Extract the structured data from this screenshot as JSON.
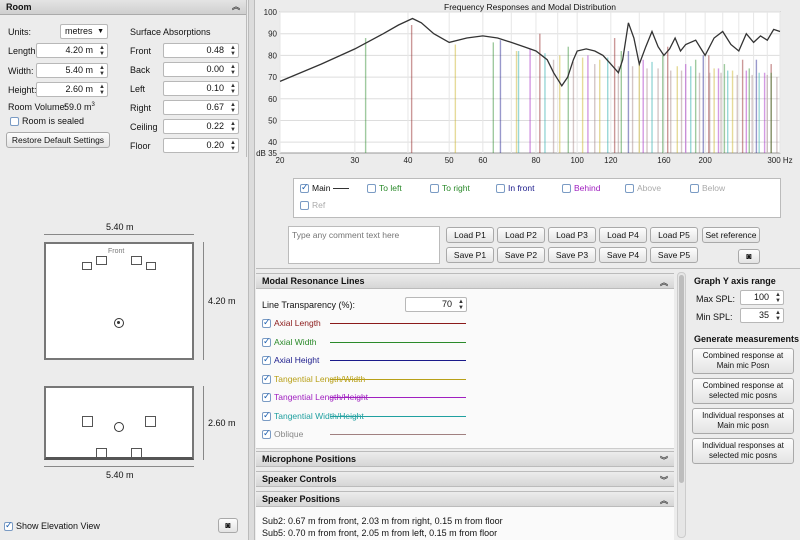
{
  "room": {
    "title": "Room",
    "units_label": "Units:",
    "units_value": "metres",
    "length_label": "Length:",
    "length_value": "4.20 m",
    "width_label": "Width:",
    "width_value": "5.40 m",
    "height_label": "Height:",
    "height_value": "2.60 m",
    "volume_label": "Room Volume:",
    "volume_value": "59.0 m",
    "volume_sup": "3",
    "sealed_label": "Room is sealed",
    "restore_label": "Restore Default Settings",
    "absorption_title": "Surface Absorptions",
    "surfaces": [
      {
        "label": "Front",
        "value": "0.48"
      },
      {
        "label": "Back",
        "value": "0.00"
      },
      {
        "label": "Left",
        "value": "0.10"
      },
      {
        "label": "Right",
        "value": "0.67"
      },
      {
        "label": "Ceiling",
        "value": "0.22"
      },
      {
        "label": "Floor",
        "value": "0.20"
      }
    ]
  },
  "plan": {
    "width_dim": "5.40 m",
    "length_dim": "4.20 m",
    "front_label": "Front",
    "height_dim": "2.60 m",
    "elev_width_dim": "5.40 m"
  },
  "elevation_toggle": {
    "label": "Show Elevation View"
  },
  "chart_data": {
    "type": "line",
    "title": "Frequency Responses and Modal Distribution",
    "xlabel": "Hz",
    "ylabel": "dB",
    "x_scale": "log",
    "xlim": [
      20,
      300
    ],
    "ylim": [
      35,
      100
    ],
    "x_ticks": [
      "20",
      "30",
      "40",
      "50",
      "60",
      "80",
      "100",
      "120",
      "160",
      "200",
      "300 Hz"
    ],
    "y_ticks": [
      "100",
      "90",
      "80",
      "70",
      "60",
      "50",
      "40",
      "dB 35"
    ],
    "grid": true,
    "series": [
      {
        "name": "Main",
        "color": "#333333",
        "x": [
          20,
          25,
          30,
          35,
          38,
          41,
          43,
          46,
          50,
          55,
          60,
          65,
          70,
          75,
          80,
          85,
          88,
          92,
          95,
          98,
          100,
          105,
          110,
          115,
          120,
          125,
          128,
          132,
          136,
          140,
          145,
          150,
          155,
          160,
          165,
          170,
          175,
          180,
          190,
          200,
          210,
          220,
          230,
          240,
          250,
          260,
          270,
          280,
          290,
          300
        ],
        "y": [
          68,
          76,
          83,
          90,
          94,
          97,
          95,
          90,
          86,
          88,
          89,
          88,
          86,
          84,
          82,
          78,
          72,
          66,
          70,
          78,
          82,
          83,
          82,
          80,
          76,
          72,
          78,
          95,
          88,
          76,
          84,
          91,
          84,
          80,
          83,
          88,
          82,
          85,
          87,
          80,
          88,
          91,
          85,
          82,
          90,
          86,
          89,
          87,
          92,
          91
        ]
      }
    ],
    "modes": {
      "axial_length_color": "#8b1a1a",
      "axial_width_color": "#2a8a2a",
      "axial_height_color": "#1a1a8b",
      "tangential_lw_color": "#c8b020",
      "tangential_lh_color": "#a020c0",
      "tangential_wh_color": "#20a8a8",
      "oblique_color": "#a08080"
    }
  },
  "legend": {
    "items": [
      {
        "label": "Main",
        "checked": true
      },
      {
        "label": "To left",
        "checked": false
      },
      {
        "label": "To right",
        "checked": false
      },
      {
        "label": "In front",
        "checked": false
      },
      {
        "label": "Behind",
        "checked": false
      },
      {
        "label": "Above",
        "checked": false
      },
      {
        "label": "Below",
        "checked": false
      },
      {
        "label": "Ref",
        "checked": false
      }
    ]
  },
  "comment": {
    "placeholder": "Type any comment text here"
  },
  "presets": {
    "load": [
      "Load P1",
      "Load P2",
      "Load P3",
      "Load P4",
      "Load P5"
    ],
    "save": [
      "Save P1",
      "Save P2",
      "Save P3",
      "Save P4",
      "Save P5"
    ],
    "set_reference": "Set reference"
  },
  "modal_lines": {
    "title": "Modal Resonance Lines",
    "transparency_label": "Line Transparency (%):",
    "transparency_value": "70",
    "items": [
      {
        "label": "Axial Length",
        "checked": true,
        "color": "#8b1a1a"
      },
      {
        "label": "Axial Width",
        "checked": true,
        "color": "#2a8a2a"
      },
      {
        "label": "Axial Height",
        "checked": true,
        "color": "#1a1a8b"
      },
      {
        "label": "Tangential Length/Width",
        "checked": true,
        "color": "#b8a018"
      },
      {
        "label": "Tangential Length/Height",
        "checked": true,
        "color": "#a020c0"
      },
      {
        "label": "Tangential Width/Height",
        "checked": true,
        "color": "#20a0a0"
      },
      {
        "label": "Oblique",
        "checked": true,
        "color": "#a08080"
      }
    ]
  },
  "sections": {
    "mic": "Microphone Positions",
    "speaker_controls": "Speaker Controls",
    "speaker_positions": "Speaker Positions"
  },
  "speaker_positions": {
    "line1": "Sub2: 0.67 m from front, 2.03 m from right, 0.15 m from floor",
    "line2": "Sub5: 0.70 m from front, 2.05 m from left, 0.15 m from floor"
  },
  "y_axis": {
    "title": "Graph Y axis range",
    "max_label": "Max SPL:",
    "max_value": "100",
    "min_label": "Min SPL:",
    "min_value": "35"
  },
  "generate": {
    "title": "Generate measurements",
    "buttons": [
      [
        "Combined response at",
        "Main mic Posn"
      ],
      [
        "Combined response at",
        "selected mic posns"
      ],
      [
        "Individual responses at",
        "Main mic posn"
      ],
      [
        "Individual responses at",
        "selected mic posns"
      ]
    ]
  }
}
